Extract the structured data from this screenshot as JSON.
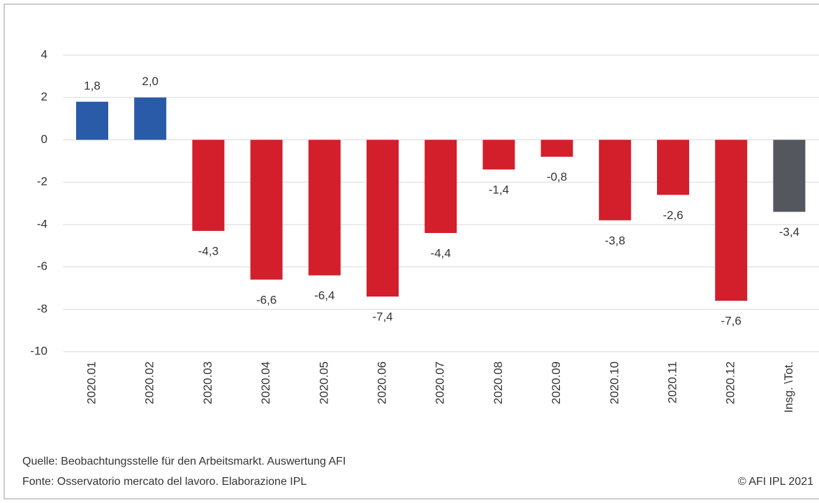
{
  "chart_data": {
    "type": "bar",
    "categories": [
      "2020.01",
      "2020.02",
      "2020.03",
      "2020.04",
      "2020.05",
      "2020.06",
      "2020.07",
      "2020.08",
      "2020.09",
      "2020.10",
      "2020.11",
      "2020.12",
      "Insg. \\Tot."
    ],
    "values": [
      1.8,
      2.0,
      -4.3,
      -6.6,
      -6.4,
      -7.4,
      -4.4,
      -1.4,
      -0.8,
      -3.8,
      -2.6,
      -7.6,
      -3.4
    ],
    "value_labels": [
      "1,8",
      "2,0",
      "-4,3",
      "-6,6",
      "-6,4",
      "-7,4",
      "-4,4",
      "-1,4",
      "-0,8",
      "-3,8",
      "-2,6",
      "-7,6",
      "-3,4"
    ],
    "colors": [
      "#2a5ba8",
      "#2a5ba8",
      "#d21f2b",
      "#d21f2b",
      "#d21f2b",
      "#d21f2b",
      "#d21f2b",
      "#d21f2b",
      "#d21f2b",
      "#d21f2b",
      "#d21f2b",
      "#d21f2b",
      "#54585e"
    ],
    "ylim": [
      -10,
      4
    ],
    "yticks": [
      4,
      2,
      0,
      -2,
      -4,
      -6,
      -8,
      -10
    ],
    "grid": true,
    "source": [
      "Quelle:  Beobachtungsstelle für den Arbeitsmarkt. Auswertung AFI",
      "Fonte: Osservatorio mercato del lavoro. Elaborazione IPL"
    ],
    "copyright": "© AFI IPL 2021"
  }
}
